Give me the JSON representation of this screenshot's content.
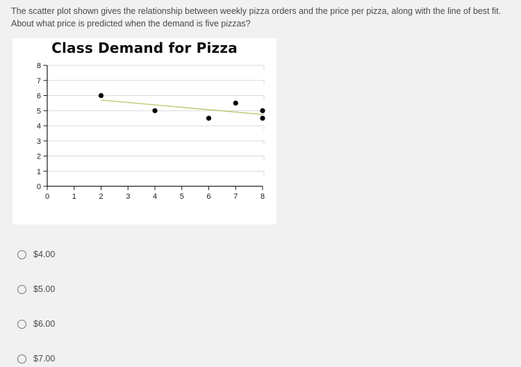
{
  "question": {
    "text": "The scatter plot shown gives the relationship between weekly pizza orders and the price per pizza, along with the line of best fit. About what price is predicted when the demand is five pizzas?"
  },
  "chart_data": {
    "type": "scatter",
    "title": "Class Demand for Pizza",
    "xlabel": "",
    "ylabel": "",
    "xlim": [
      0,
      8
    ],
    "ylim": [
      0,
      8
    ],
    "x_ticks": [
      0,
      1,
      2,
      3,
      4,
      5,
      6,
      7,
      8
    ],
    "y_ticks": [
      0,
      1,
      2,
      3,
      4,
      5,
      6,
      7,
      8
    ],
    "grid": "horizontal",
    "points": [
      [
        2,
        6
      ],
      [
        4,
        5
      ],
      [
        6,
        4.5
      ],
      [
        7,
        5.5
      ],
      [
        8,
        5
      ],
      [
        8,
        4.5
      ]
    ],
    "trendline": {
      "x1": 2,
      "y1": 5.7,
      "x2": 8,
      "y2": 4.75
    },
    "colors": {
      "point": "#000000",
      "trendline": "#b3c869",
      "grid": "#d9d9d9",
      "axis": "#1a1a1a",
      "tick_label": "#1a1a1a"
    }
  },
  "options": [
    {
      "label": "$4.00",
      "selected": false
    },
    {
      "label": "$5.00",
      "selected": false
    },
    {
      "label": "$6.00",
      "selected": false
    },
    {
      "label": "$7.00",
      "selected": false
    }
  ]
}
